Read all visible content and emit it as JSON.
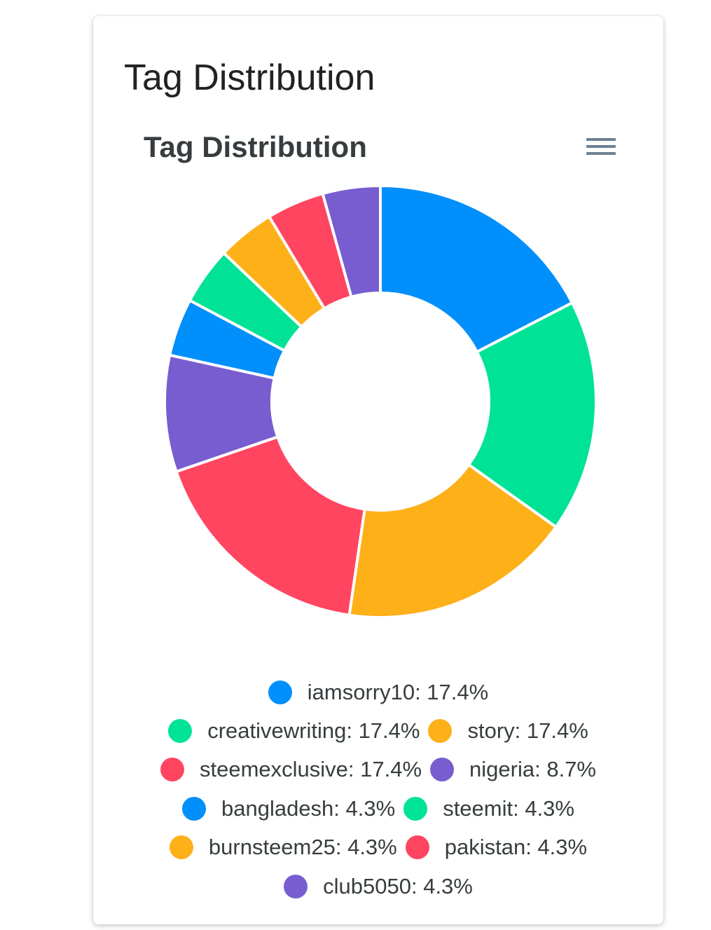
{
  "card": {
    "title": "Tag Distribution"
  },
  "chart_data": {
    "type": "pie",
    "donut": true,
    "title": "Tag Distribution",
    "categories": [
      "iamsorry10",
      "creativewriting",
      "story",
      "steemexclusive",
      "nigeria",
      "bangladesh",
      "steemit",
      "burnsteem25",
      "pakistan",
      "club5050"
    ],
    "values": [
      17.4,
      17.4,
      17.4,
      17.4,
      8.7,
      4.3,
      4.3,
      4.3,
      4.3,
      4.3
    ],
    "value_unit": "%",
    "colors": [
      "#008ffb",
      "#00e396",
      "#feb019",
      "#ff4560",
      "#775dd0",
      "#008ffb",
      "#00e396",
      "#feb019",
      "#ff4560",
      "#775dd0"
    ],
    "legend_position": "bottom",
    "legend_labels": [
      "iamsorry10: 17.4%",
      "creativewriting: 17.4%",
      "story: 17.4%",
      "steemexclusive: 17.4%",
      "nigeria: 8.7%",
      "bangladesh: 4.3%",
      "steemit: 4.3%",
      "burnsteem25: 4.3%",
      "pakistan: 4.3%",
      "club5050: 4.3%"
    ]
  },
  "toolbar": {
    "menu_icon": "hamburger-menu-icon"
  }
}
